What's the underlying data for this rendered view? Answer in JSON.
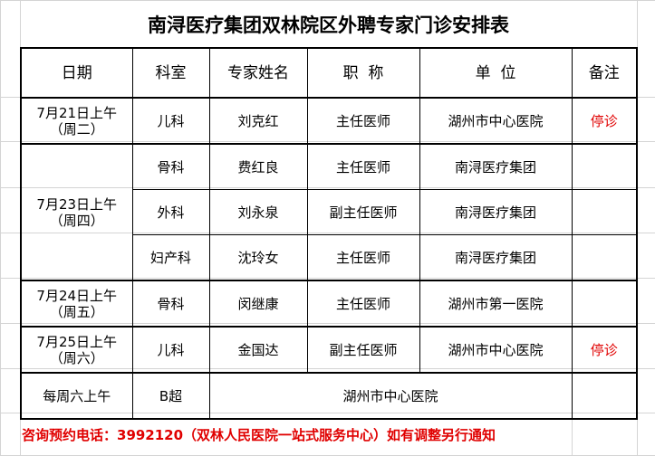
{
  "title": "南浔医疗集团双林院区外聘专家门诊安排表",
  "headers": [
    "日期",
    "科室",
    "专家姓名",
    "职  称",
    "单  位",
    "备注"
  ],
  "rows": [
    {
      "date": "7月21日上午",
      "weekday": "（周二）",
      "dept": "儿科",
      "name": "刘克红",
      "title": "主任医师",
      "unit": "湖州市中心医院",
      "note": "停诊"
    },
    {
      "date": "7月23日上午",
      "weekday": "（周四）",
      "dept": "骨科",
      "name": "费红良",
      "title": "主任医师",
      "unit": "南浔医疗集团",
      "note": ""
    },
    {
      "dept": "外科",
      "name": "刘永泉",
      "title": "副主任医师",
      "unit": "南浔医疗集团",
      "note": ""
    },
    {
      "dept": "妇产科",
      "name": "沈玲女",
      "title": "主任医师",
      "unit": "南浔医疗集团",
      "note": ""
    },
    {
      "date": "7月24日上午",
      "weekday": "（周五）",
      "dept": "骨科",
      "name": "闵继康",
      "title": "主任医师",
      "unit": "湖州市第一医院",
      "note": ""
    },
    {
      "date": "7月25日上午",
      "weekday": "（周六）",
      "dept": "儿科",
      "name": "金国达",
      "title": "副主任医师",
      "unit": "湖州市中心医院",
      "note": "停诊"
    },
    {
      "date": "每周六上午",
      "dept": "B超",
      "unit": "湖州市中心医院",
      "note": ""
    }
  ],
  "footer": "咨询预约电话：3992120（双林人民医院一站式服务中心）如有调整另行通知",
  "colors": {
    "note_red": "#e00000",
    "gridline": "#d4d4d4"
  }
}
